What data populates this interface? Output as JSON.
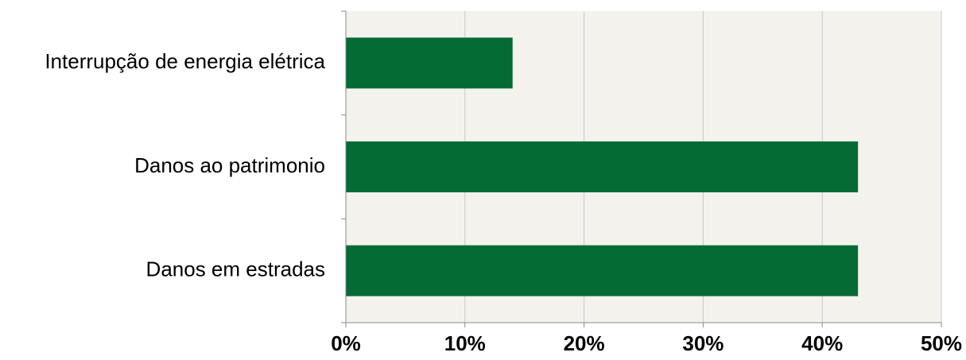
{
  "chart_data": {
    "type": "bar",
    "orientation": "horizontal",
    "categories": [
      "Interrupção de energia elétrica",
      "Danos ao patrimonio",
      "Danos em estradas"
    ],
    "values": [
      14,
      43,
      43
    ],
    "xlim": [
      0,
      50
    ],
    "xticks": [
      0,
      10,
      20,
      30,
      40,
      50
    ],
    "xtick_labels": [
      "0%",
      "10%",
      "20%",
      "30%",
      "40%",
      "50%"
    ],
    "grid": "vertical",
    "legend": "none",
    "colors": {
      "bar": "#046b35",
      "plot_background": "#f3f2ed",
      "gridline": "#c8c8c8",
      "axis": "#888888"
    }
  }
}
